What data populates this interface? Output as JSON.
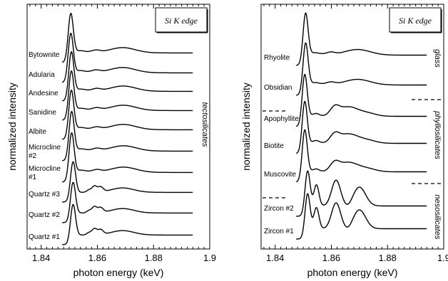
{
  "chart_data": [
    {
      "type": "line",
      "title": "",
      "edge_label": "Si K edge",
      "xlabel": "photon energy (keV)",
      "ylabel": "normalized intensity",
      "xlim": [
        1.835,
        1.9
      ],
      "xticks": [
        "1.84",
        "1.86",
        "1.88",
        "1.9"
      ],
      "xtick_values": [
        1.84,
        1.86,
        1.88,
        1.9
      ],
      "group_labels": [
        {
          "text": "tectosilicates",
          "spans": [
            "Bytownite",
            "Quartz #1"
          ]
        }
      ],
      "series": [
        {
          "name": "Bytownite",
          "peak_x": 1.8505,
          "post_edge_features": "broad",
          "end_x": 1.894
        },
        {
          "name": "Adularia",
          "peak_x": 1.8505,
          "post_edge_features": "broad",
          "end_x": 1.894
        },
        {
          "name": "Andesine",
          "peak_x": 1.8507,
          "post_edge_features": "broad",
          "end_x": 1.894
        },
        {
          "name": "Sanidine",
          "peak_x": 1.8507,
          "post_edge_features": "broad",
          "end_x": 1.894
        },
        {
          "name": "Albite",
          "peak_x": 1.8507,
          "post_edge_features": "broad",
          "end_x": 1.894
        },
        {
          "name": "Microcline #2",
          "peak_x": 1.8508,
          "post_edge_features": "broad",
          "end_x": 1.894
        },
        {
          "name": "Microcline #1",
          "peak_x": 1.8508,
          "post_edge_features": "broad",
          "end_x": 1.894
        },
        {
          "name": "Quartz #3",
          "peak_x": 1.8513,
          "post_edge_features": "sharp",
          "end_x": 1.894
        },
        {
          "name": "Quartz #2",
          "peak_x": 1.8513,
          "post_edge_features": "sharp",
          "end_x": 1.894
        },
        {
          "name": "Quartz #1",
          "peak_x": 1.8513,
          "post_edge_features": "sharp",
          "end_x": 1.894
        }
      ]
    },
    {
      "type": "line",
      "title": "",
      "edge_label": "Si K edge",
      "xlabel": "photon energy (keV)",
      "ylabel": "normalized intensity",
      "xlim": [
        1.835,
        1.9
      ],
      "xticks": [
        "1.84",
        "1.86",
        "1.88",
        "1.9"
      ],
      "xtick_values": [
        1.84,
        1.86,
        1.88,
        1.9
      ],
      "group_labels": [
        {
          "text": "glass",
          "spans": [
            "Rhyolite",
            "Obsidian"
          ]
        },
        {
          "text": "phyllosilicates",
          "spans": [
            "Apophyllite",
            "Muscovite"
          ]
        },
        {
          "text": "nesosilicates",
          "spans": [
            "Zircon #2",
            "Zircon #1"
          ]
        }
      ],
      "series": [
        {
          "name": "Rhyolite",
          "peak_x": 1.8508,
          "post_edge_features": "broad",
          "end_x": 1.894
        },
        {
          "name": "Obsidian",
          "peak_x": 1.8508,
          "post_edge_features": "broad",
          "end_x": 1.894
        },
        {
          "name": "Apophyllite",
          "peak_x": 1.8505,
          "post_edge_features": "layered",
          "end_x": 1.894
        },
        {
          "name": "Biotite",
          "peak_x": 1.8505,
          "post_edge_features": "layered",
          "end_x": 1.894
        },
        {
          "name": "Muscovite",
          "peak_x": 1.8505,
          "post_edge_features": "layered",
          "end_x": 1.894
        },
        {
          "name": "Zircon #2",
          "peak_x": 1.8515,
          "post_edge_features": "zircon",
          "end_x": 1.894
        },
        {
          "name": "Zircon #1",
          "peak_x": 1.8515,
          "post_edge_features": "zircon",
          "end_x": 1.894
        }
      ]
    }
  ]
}
